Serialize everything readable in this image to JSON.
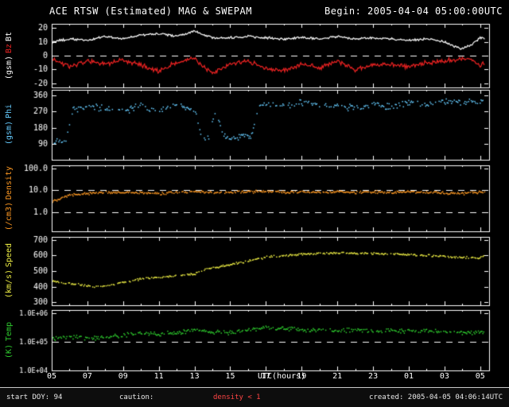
{
  "header": {
    "title": "ACE RTSW (Estimated) MAG & SWEPAM",
    "begin_label": "Begin: 2005-04-04 05:00:00UTC"
  },
  "footer": {
    "start_doy": "start DOY: 94",
    "caution_label": "caution:",
    "caution_value": "density < 1",
    "created": "created: 2005-04-05 04:06:14UTC"
  },
  "x_axis": {
    "label": "UTC(hours)",
    "ticks": [
      "05",
      "07",
      "09",
      "11",
      "13",
      "15",
      "17",
      "19",
      "21",
      "23",
      "01",
      "03",
      "05"
    ],
    "range_hours": [
      5,
      29.5
    ]
  },
  "colors": {
    "background": "#000000",
    "frame": "#ffffff",
    "bt": "#ffffff",
    "bz": "#ee2222",
    "phi": "#66ccff",
    "density": "#ff9922",
    "speed": "#eeee44",
    "temp": "#2ecc2e",
    "caution": "#ff4545"
  },
  "chart_data": [
    {
      "id": "mag",
      "type": "line",
      "yscale": "linear",
      "ylim": [
        -23,
        23
      ],
      "ylabel_words": [
        {
          "text": "Bt",
          "color": "#ffffff"
        },
        {
          "text": "Bz",
          "color": "#ee2222"
        },
        {
          "text": "(gsm)",
          "color": "#ffffff"
        }
      ],
      "yticks": [
        {
          "v": 20,
          "label": "20"
        },
        {
          "v": 10,
          "label": "10"
        },
        {
          "v": 0,
          "label": "0"
        },
        {
          "v": -10,
          "label": "-10"
        },
        {
          "v": -20,
          "label": "-20"
        }
      ],
      "dashed": [
        0
      ],
      "series": [
        {
          "name": "Bt",
          "color": "#ffffff",
          "style": "line",
          "noise": 1.0,
          "clamp": [
            0.5,
            22
          ],
          "x": [
            5,
            6,
            7,
            8,
            9,
            10,
            11,
            12,
            13,
            13.5,
            14,
            15,
            16,
            17,
            18,
            19,
            20,
            21,
            22,
            23,
            24,
            25,
            26,
            27,
            27.5,
            28,
            28.5,
            29,
            29.3
          ],
          "y": [
            10,
            12,
            11,
            14,
            12,
            15,
            16,
            14,
            18,
            15,
            13,
            13,
            14,
            13,
            12,
            13,
            12,
            14,
            12,
            13,
            12,
            11,
            12,
            10,
            7,
            5,
            8,
            13,
            12
          ]
        },
        {
          "name": "Bz",
          "color": "#ee2222",
          "style": "line",
          "noise": 2.0,
          "clamp": [
            -20,
            6
          ],
          "x": [
            5,
            6,
            7,
            8,
            9,
            10,
            11,
            12,
            13,
            13.5,
            14,
            14.5,
            15,
            16,
            17,
            18,
            19,
            20,
            21,
            22,
            23,
            24,
            25,
            26,
            27,
            28,
            28.5,
            29,
            29.3
          ],
          "y": [
            -2,
            -8,
            -4,
            -6,
            -3,
            -7,
            -11,
            -5,
            -2,
            -8,
            -13,
            -9,
            -6,
            -4,
            -9,
            -11,
            -6,
            -9,
            -4,
            -10,
            -7,
            -6,
            -8,
            -5,
            -4,
            -2,
            -3,
            -7,
            -5
          ]
        }
      ]
    },
    {
      "id": "phi",
      "type": "scatter",
      "yscale": "linear",
      "ylim": [
        0,
        392
      ],
      "ylabel_words": [
        {
          "text": "Phi",
          "color": "#66ccff"
        },
        {
          "text": "(gsm)",
          "color": "#66ccff"
        }
      ],
      "yticks": [
        {
          "v": 360,
          "label": "360"
        },
        {
          "v": 270,
          "label": "270"
        },
        {
          "v": 180,
          "label": "180"
        },
        {
          "v": 90,
          "label": "90"
        }
      ],
      "dashed": [],
      "series": [
        {
          "name": "Phi",
          "color": "#66ccff",
          "style": "scatter",
          "noise": 22,
          "gap": 0.4,
          "clamp": [
            5,
            360
          ],
          "x": [
            5,
            5.4,
            5.8,
            6.2,
            7,
            8,
            9,
            10,
            11,
            12,
            13,
            13.4,
            13.8,
            14.2,
            14.6,
            15,
            15.4,
            15.8,
            16.2,
            16.6,
            17,
            18,
            19,
            20,
            21,
            22,
            23,
            24,
            25,
            26,
            27,
            28,
            29,
            29.3
          ],
          "y": [
            95,
            100,
            110,
            280,
            300,
            290,
            270,
            300,
            280,
            310,
            280,
            130,
            120,
            290,
            130,
            110,
            120,
            140,
            130,
            300,
            310,
            300,
            320,
            310,
            300,
            290,
            310,
            300,
            320,
            310,
            330,
            320,
            335,
            340
          ]
        }
      ]
    },
    {
      "id": "density",
      "type": "scatter",
      "yscale": "log",
      "ylim": [
        0.13,
        140
      ],
      "ylabel_words": [
        {
          "text": "Density",
          "color": "#ff9922"
        },
        {
          "text": "(/cm3)",
          "color": "#ff9922"
        }
      ],
      "yticks": [
        {
          "v": 100,
          "label": "100.0"
        },
        {
          "v": 10,
          "label": "10.0"
        },
        {
          "v": 1,
          "label": "1.0"
        }
      ],
      "dashed": [
        10,
        1
      ],
      "series": [
        {
          "name": "Density",
          "color": "#ff9922",
          "style": "scatter",
          "noise": 0.07,
          "gap": 0.15,
          "clamp": [
            0.5,
            60
          ],
          "x": [
            5,
            5.5,
            6,
            7,
            8,
            9,
            10,
            11,
            12,
            13,
            14,
            15,
            16,
            17,
            18,
            19,
            20,
            21,
            22,
            23,
            24,
            25,
            26,
            27,
            28,
            29,
            29.3
          ],
          "y": [
            3,
            4,
            6,
            7,
            8,
            7.5,
            8,
            7,
            8,
            8.5,
            8,
            8,
            8.5,
            9,
            8,
            8.5,
            8,
            8.5,
            8,
            8.5,
            8,
            8.5,
            8,
            7.5,
            7,
            8,
            8.5
          ]
        }
      ]
    },
    {
      "id": "speed",
      "type": "scatter",
      "yscale": "linear",
      "ylim": [
        280,
        720
      ],
      "ylabel_words": [
        {
          "text": "Speed",
          "color": "#eeee44"
        },
        {
          "text": "(km/s)",
          "color": "#eeee44"
        }
      ],
      "yticks": [
        {
          "v": 700,
          "label": "700"
        },
        {
          "v": 600,
          "label": "600"
        },
        {
          "v": 500,
          "label": "500"
        },
        {
          "v": 400,
          "label": "400"
        },
        {
          "v": 300,
          "label": "300"
        }
      ],
      "dashed": [],
      "series": [
        {
          "name": "Speed",
          "color": "#eeee44",
          "style": "scatter",
          "noise": 8,
          "gap": 0.3,
          "clamp": [
            300,
            700
          ],
          "x": [
            5,
            6,
            7,
            7.5,
            8,
            9,
            10,
            11,
            12,
            13,
            13.5,
            14,
            15,
            16,
            17,
            18,
            19,
            20,
            21,
            22,
            23,
            24,
            25,
            26,
            27,
            28,
            29,
            29.3
          ],
          "y": [
            435,
            420,
            405,
            398,
            405,
            425,
            450,
            460,
            470,
            480,
            510,
            520,
            540,
            565,
            590,
            600,
            608,
            612,
            615,
            612,
            615,
            610,
            605,
            600,
            595,
            588,
            585,
            600
          ]
        }
      ]
    },
    {
      "id": "temp",
      "type": "scatter",
      "yscale": "log",
      "ylim": [
        10000.0,
        1250000.0
      ],
      "ylabel_words": [
        {
          "text": "Temp",
          "color": "#2ecc2e"
        },
        {
          "text": "(K)",
          "color": "#2ecc2e"
        }
      ],
      "yticks": [
        {
          "v": 1000000.0,
          "label": "1.0E+06"
        },
        {
          "v": 100000.0,
          "label": "1.0E+05"
        },
        {
          "v": 10000.0,
          "label": "1.0E+04"
        }
      ],
      "dashed": [
        100000.0
      ],
      "series": [
        {
          "name": "Temp",
          "color": "#2ecc2e",
          "style": "scatter",
          "noise": 0.09,
          "gap": 0.25,
          "clamp": [
            20000.0,
            900000.0
          ],
          "x": [
            5,
            6,
            7,
            8,
            9,
            10,
            11,
            12,
            13,
            14,
            15,
            16,
            17,
            18,
            19,
            20,
            21,
            22,
            23,
            24,
            25,
            26,
            27,
            28,
            29,
            29.3
          ],
          "y": [
            120000.0,
            150000.0,
            130000.0,
            140000.0,
            160000.0,
            200000.0,
            180000.0,
            200000.0,
            260000.0,
            220000.0,
            200000.0,
            250000.0,
            300000.0,
            280000.0,
            250000.0,
            260000.0,
            240000.0,
            250000.0,
            230000.0,
            250000.0,
            220000.0,
            240000.0,
            220000.0,
            200000.0,
            210000.0,
            220000.0
          ]
        }
      ]
    }
  ]
}
